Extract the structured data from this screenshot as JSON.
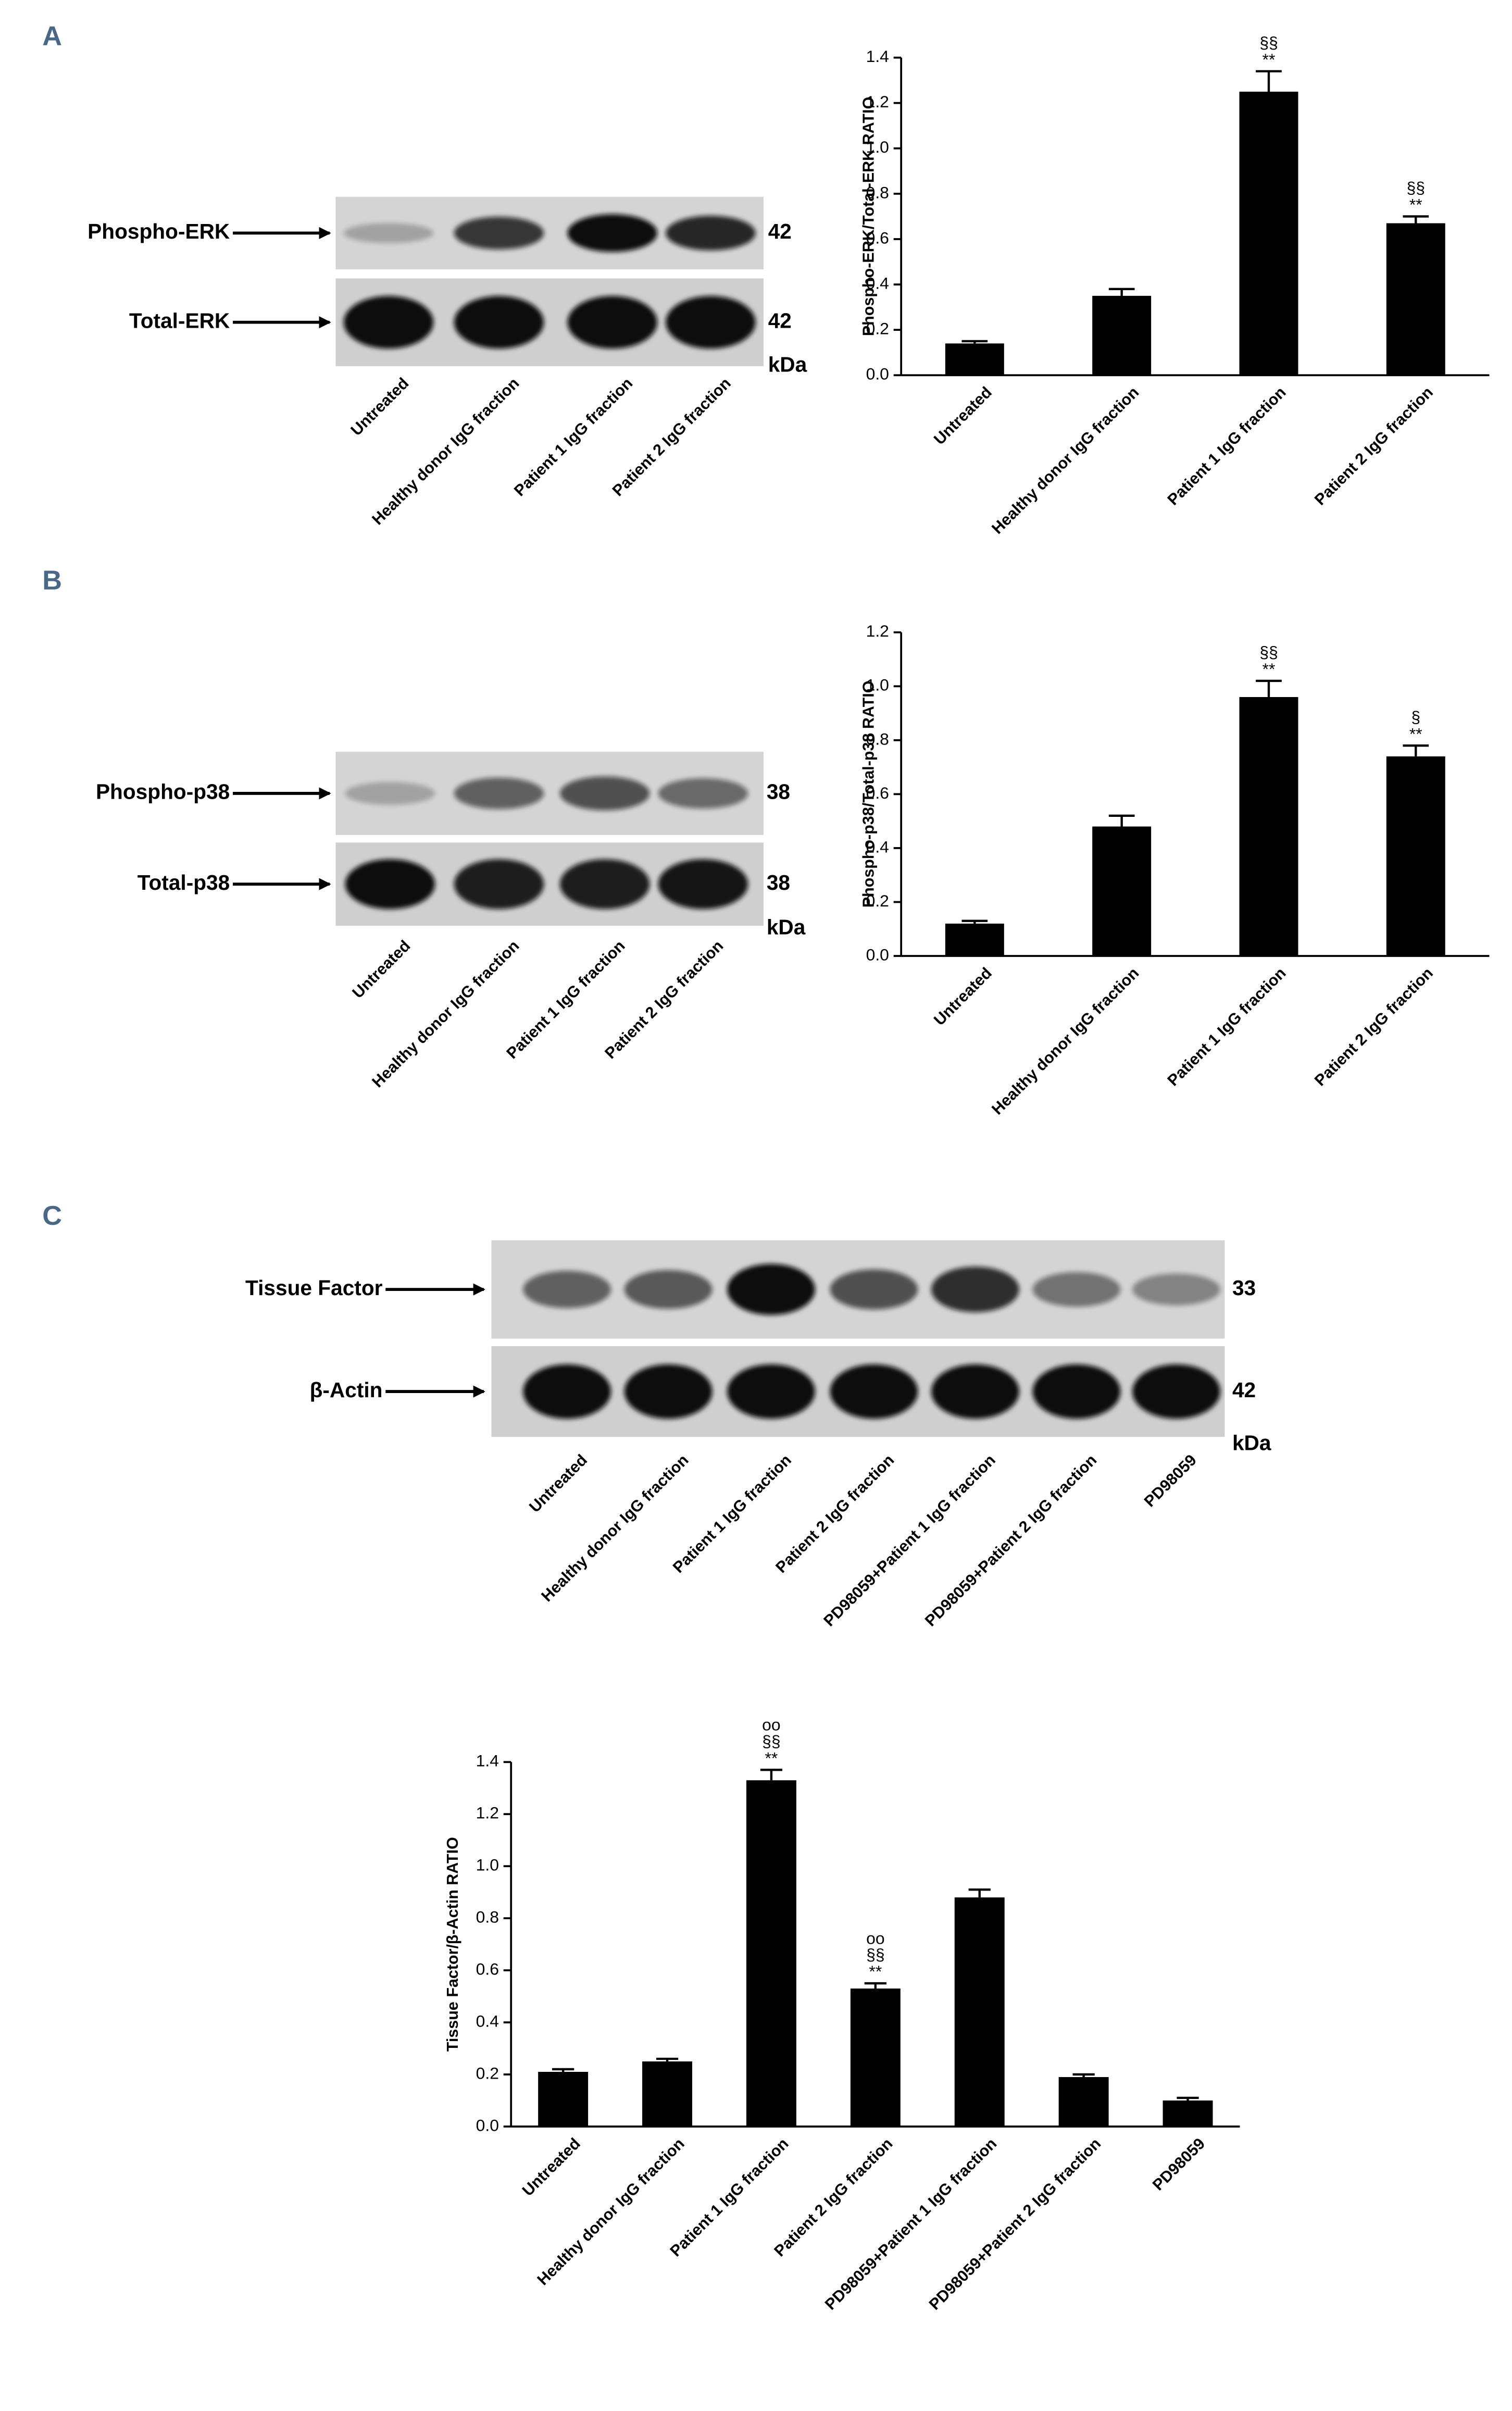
{
  "panels": [
    "A",
    "B",
    "C"
  ],
  "blots": [
    {
      "rows": [
        {
          "label": "Phospho-ERK",
          "size": "42"
        },
        {
          "label": "Total-ERK",
          "size": "42"
        }
      ],
      "unit": "kDa",
      "lanes": [
        "Untreated",
        "Healthy donor IgG fraction",
        "Patient 1 IgG fraction",
        "Patient 2 IgG fraction"
      ]
    },
    {
      "rows": [
        {
          "label": "Phospho-p38",
          "size": "38"
        },
        {
          "label": "Total-p38",
          "size": "38"
        }
      ],
      "unit": "kDa",
      "lanes": [
        "Untreated",
        "Healthy donor IgG fraction",
        "Patient 1 IgG fraction",
        "Patient 2 IgG fraction"
      ]
    },
    {
      "rows": [
        {
          "label": "Tissue Factor",
          "size": "33"
        },
        {
          "label": "β-Actin",
          "size": "42"
        }
      ],
      "unit": "kDa",
      "lanes": [
        "Untreated",
        "Healthy donor IgG fraction",
        "Patient 1 IgG fraction",
        "Patient 2 IgG fraction",
        "PD98059+Patient 1 IgG fraction",
        "PD98059+Patient 2 IgG fraction",
        "PD98059"
      ]
    }
  ],
  "chart_data": [
    {
      "type": "bar",
      "ylabel": "Phospho-ERK/Total-ERK RATIO",
      "color": "#000000",
      "categories": [
        "Untreated",
        "Healthy donor IgG fraction",
        "Patient 1 IgG fraction",
        "Patient 2 IgG fraction"
      ],
      "values": [
        0.14,
        0.35,
        1.25,
        0.67
      ],
      "errors": [
        0.01,
        0.03,
        0.09,
        0.03
      ],
      "annotations": [
        null,
        null,
        [
          "§§",
          "**"
        ],
        [
          "§§",
          "**"
        ]
      ],
      "ylim": [
        0,
        1.4
      ],
      "yticks": [
        {
          "value": 0,
          "label": "0.0"
        },
        0.2,
        0.4,
        0.6,
        0.8,
        {
          "value": 1,
          "label": "1.0"
        },
        1.2,
        1.4
      ]
    },
    {
      "type": "bar",
      "ylabel": "Phospho-p38/Total-p38 RATIO",
      "color": "#000000",
      "categories": [
        "Untreated",
        "Healthy donor IgG fraction",
        "Patient 1 IgG fraction",
        "Patient 2 IgG fraction"
      ],
      "values": [
        0.12,
        0.48,
        0.96,
        0.74
      ],
      "errors": [
        0.01,
        0.04,
        0.06,
        0.04
      ],
      "annotations": [
        null,
        null,
        [
          "§§",
          "**"
        ],
        [
          "§",
          "**"
        ]
      ],
      "ylim": [
        0,
        1.2
      ],
      "yticks": [
        {
          "value": 0,
          "label": "0.0"
        },
        0.2,
        0.4,
        0.6,
        0.8,
        {
          "value": 1,
          "label": "1.0"
        },
        1.2
      ]
    },
    {
      "type": "bar",
      "ylabel": "Tissue Factor/β-Actin RATIO",
      "color": "#000000",
      "categories": [
        "Untreated",
        "Healthy donor IgG fraction",
        "Patient 1 IgG fraction",
        "Patient 2 IgG fraction",
        "PD98059+Patient 1 IgG fraction",
        "PD98059+Patient 2 IgG fraction",
        "PD98059"
      ],
      "values": [
        0.21,
        0.25,
        1.33,
        0.53,
        0.88,
        0.19,
        0.1
      ],
      "errors": [
        0.01,
        0.01,
        0.04,
        0.02,
        0.03,
        0.01,
        0.01
      ],
      "annotations": [
        null,
        null,
        [
          "oo",
          "§§",
          "**"
        ],
        [
          "oo",
          "§§",
          "**"
        ],
        null,
        null,
        null
      ],
      "ylim": [
        0,
        1.4
      ],
      "yticks": [
        {
          "value": 0,
          "label": "0.0"
        },
        0.2,
        0.4,
        0.6,
        0.8,
        {
          "value": 1,
          "label": "1.0"
        },
        1.2,
        1.4
      ]
    }
  ]
}
